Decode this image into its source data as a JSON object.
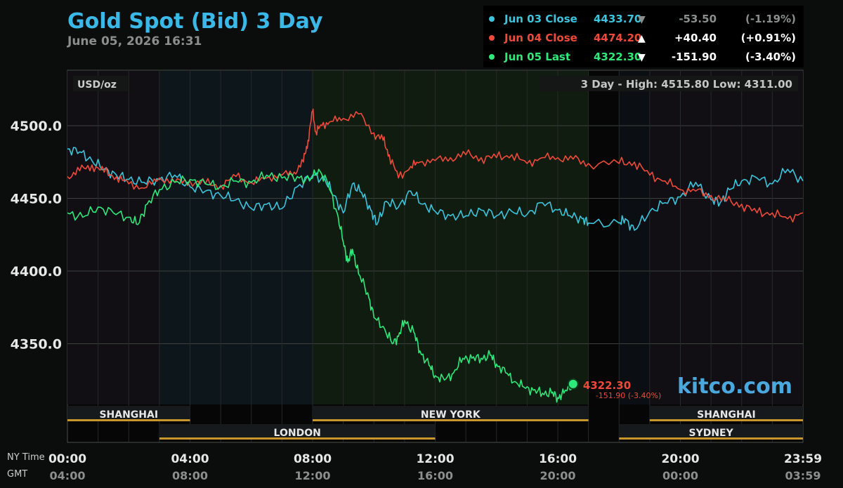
{
  "header": {
    "title": "Gold Spot (Bid) 3 Day",
    "datetime": "June 05, 2026 16:31"
  },
  "legend": [
    {
      "label": "Jun 03 Close",
      "price": "4433.70",
      "arrow": "▼",
      "change": "-53.50",
      "pct": "(-1.19%)",
      "color": "#3cc4dc",
      "dim": true
    },
    {
      "label": "Jun 04 Close",
      "price": "4474.20",
      "arrow": "▲",
      "change": "+40.40",
      "pct": "(+0.91%)",
      "color": "#ee4a3a",
      "dim": false
    },
    {
      "label": "Jun 05 Last",
      "price": "4322.30",
      "arrow": "▼",
      "change": "-151.90",
      "pct": "(-3.40%)",
      "color": "#2ee87a",
      "dim": false
    }
  ],
  "plot": {
    "unit_label": "USD/oz",
    "range_text": "3 Day - High: 4515.80  Low: 4311.00",
    "last_price": "4322.30",
    "last_change": "-151.90 (-3.40%)",
    "watermark": "kitco.com"
  },
  "axis": {
    "row1_label": "NY Time",
    "row2_label": "GMT"
  },
  "sessions": [
    {
      "name": "SHANGHAI",
      "start": 0,
      "end": 4,
      "row": 1
    },
    {
      "name": "NEW YORK",
      "start": 8,
      "end": 17,
      "row": 1
    },
    {
      "name": "SHANGHAI",
      "start": 19,
      "end": 24,
      "row": 1
    },
    {
      "name": "LONDON",
      "start": 3,
      "end": 12,
      "row": 2
    },
    {
      "name": "SYDNEY",
      "start": 18,
      "end": 24,
      "row": 2
    }
  ],
  "colors": {
    "jun03": "#3cc4dc",
    "jun04": "#ee4a3a",
    "jun05": "#2ee87a",
    "title": "#3ab8e8",
    "session_bar": "#c8962c"
  },
  "chart_data": {
    "type": "line",
    "title": "Gold Spot (Bid) 3 Day",
    "ylabel": "USD/oz",
    "ylim": [
      4298,
      4536
    ],
    "xlim": [
      0,
      24
    ],
    "y_ticks": [
      "4500.0",
      "4450.0",
      "4400.0",
      "4350.0"
    ],
    "y_tick_values": [
      4500,
      4450,
      4400,
      4350
    ],
    "x_ticks_ny": [
      "00:00",
      "04:00",
      "08:00",
      "12:00",
      "16:00",
      "20:00",
      "23:59"
    ],
    "x_ticks_gmt": [
      "04:00",
      "08:00",
      "12:00",
      "16:00",
      "20:00",
      "00:00",
      "03:59"
    ],
    "x_tick_values": [
      0,
      4,
      8,
      12,
      16,
      20,
      24
    ],
    "grid": true,
    "series": [
      {
        "name": "Jun 03 Close",
        "x": [
          0,
          0.4,
          0.8,
          1.2,
          1.6,
          2.0,
          2.5,
          3.0,
          3.5,
          4.0,
          4.5,
          5.0,
          5.5,
          6.0,
          6.5,
          7.0,
          7.5,
          8.0,
          8.4,
          8.7,
          9.0,
          9.3,
          9.6,
          9.9,
          10.1,
          10.4,
          10.8,
          11.2,
          11.6,
          12.0,
          12.5,
          13.0,
          13.5,
          14.0,
          14.5,
          15.0,
          15.5,
          16.0,
          16.4,
          16.8,
          17.0,
          18.0,
          18.2,
          18.5,
          19.0,
          19.5,
          20.0,
          20.5,
          21.0,
          21.3,
          21.6,
          22.0,
          22.5,
          23.0,
          23.5,
          24.0
        ],
        "values": [
          4484,
          4482,
          4476,
          4470,
          4466,
          4463,
          4461,
          4463,
          4466,
          4458,
          4455,
          4452,
          4449,
          4443,
          4446,
          4443,
          4458,
          4466,
          4463,
          4452,
          4440,
          4460,
          4454,
          4442,
          4432,
          4448,
          4444,
          4455,
          4446,
          4441,
          4438,
          4438,
          4442,
          4438,
          4441,
          4439,
          4447,
          4442,
          4438,
          4436,
          4433,
          4433,
          4436,
          4428,
          4441,
          4447,
          4451,
          4461,
          4449,
          4447,
          4456,
          4462,
          4464,
          4460,
          4470,
          4462
        ]
      },
      {
        "name": "Jun 04 Close",
        "x": [
          0,
          0.4,
          0.8,
          1.2,
          1.6,
          2.0,
          2.5,
          3.0,
          3.5,
          4.0,
          4.5,
          5.0,
          5.5,
          6.0,
          6.5,
          7.0,
          7.4,
          7.7,
          7.85,
          8.0,
          8.1,
          8.3,
          8.6,
          9.0,
          9.5,
          10.0,
          10.3,
          10.5,
          10.8,
          11.2,
          11.5,
          12.0,
          12.5,
          13.0,
          13.5,
          14.0,
          14.5,
          15.0,
          15.5,
          16.0,
          16.5,
          17.0,
          18.0,
          18.5,
          19.0,
          19.5,
          20.0,
          20.5,
          21.0,
          21.5,
          22.0,
          22.5,
          23.0,
          23.5,
          24.0
        ],
        "values": [
          4465,
          4469,
          4473,
          4468,
          4465,
          4460,
          4457,
          4464,
          4461,
          4462,
          4460,
          4459,
          4465,
          4461,
          4464,
          4466,
          4468,
          4475,
          4490,
          4510,
          4496,
          4500,
          4503,
          4505,
          4508,
          4495,
          4490,
          4480,
          4464,
          4472,
          4475,
          4476,
          4478,
          4480,
          4478,
          4478,
          4480,
          4474,
          4478,
          4478,
          4477,
          4474,
          4474,
          4475,
          4466,
          4462,
          4456,
          4455,
          4452,
          4448,
          4446,
          4440,
          4440,
          4436,
          4440
        ]
      },
      {
        "name": "Jun 05 Last",
        "x": [
          0,
          0.5,
          1.0,
          1.5,
          2.0,
          2.3,
          2.6,
          3.0,
          3.5,
          4.0,
          4.5,
          5.0,
          5.5,
          6.0,
          6.5,
          7.0,
          7.5,
          7.9,
          8.2,
          8.5,
          8.8,
          9.0,
          9.15,
          9.3,
          9.5,
          9.8,
          10.0,
          10.3,
          10.6,
          10.8,
          11.0,
          11.3,
          11.5,
          11.8,
          12.0,
          12.3,
          12.6,
          12.9,
          13.2,
          13.5,
          13.8,
          14.0,
          14.3,
          14.6,
          14.9,
          15.2,
          15.5,
          15.8,
          16.0,
          16.2,
          16.5
        ],
        "values": [
          4440,
          4437,
          4444,
          4440,
          4437,
          4432,
          4446,
          4456,
          4461,
          4463,
          4460,
          4458,
          4462,
          4461,
          4466,
          4464,
          4465,
          4462,
          4470,
          4460,
          4440,
          4420,
          4406,
          4415,
          4398,
          4385,
          4368,
          4362,
          4350,
          4355,
          4366,
          4358,
          4345,
          4335,
          4328,
          4325,
          4330,
          4340,
          4340,
          4340,
          4342,
          4336,
          4330,
          4324,
          4320,
          4318,
          4316,
          4316,
          4313,
          4316,
          4322.3
        ]
      }
    ]
  }
}
